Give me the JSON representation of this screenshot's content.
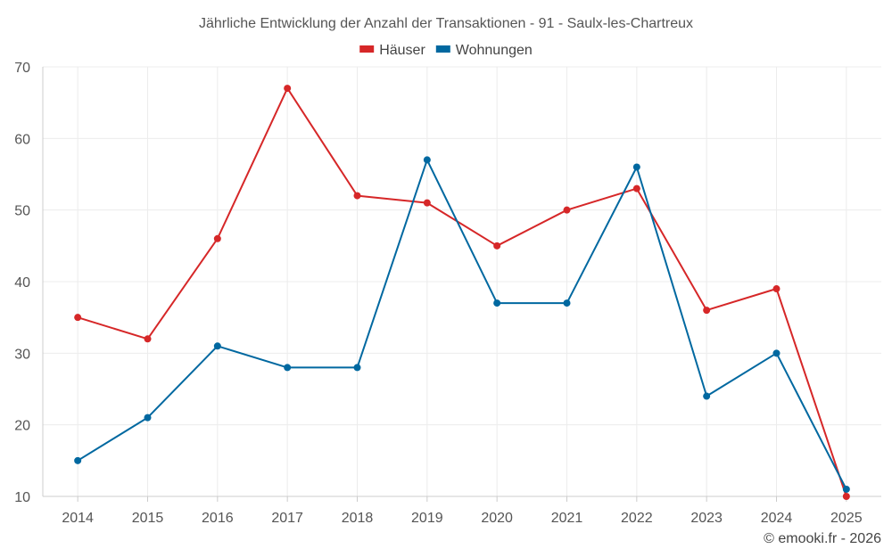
{
  "chart_data": {
    "type": "line",
    "title": "Jährliche Entwicklung der Anzahl der Transaktionen - 91 - Saulx-les-Chartreux",
    "xlabel": "",
    "ylabel": "",
    "categories": [
      "2014",
      "2015",
      "2016",
      "2017",
      "2018",
      "2019",
      "2020",
      "2021",
      "2022",
      "2023",
      "2024",
      "2025"
    ],
    "series": [
      {
        "name": "Häuser",
        "color": "#d62728",
        "values": [
          35,
          32,
          46,
          67,
          52,
          51,
          45,
          50,
          53,
          36,
          39,
          10
        ]
      },
      {
        "name": "Wohnungen",
        "color": "#0068a0",
        "values": [
          15,
          21,
          31,
          28,
          28,
          57,
          37,
          37,
          56,
          24,
          30,
          11
        ]
      }
    ],
    "ylim": [
      10,
      70
    ],
    "yticks": [
      10,
      20,
      30,
      40,
      50,
      60,
      70
    ],
    "grid": true,
    "legend_position": "top-center"
  },
  "credit": "© emooki.fr - 2026"
}
